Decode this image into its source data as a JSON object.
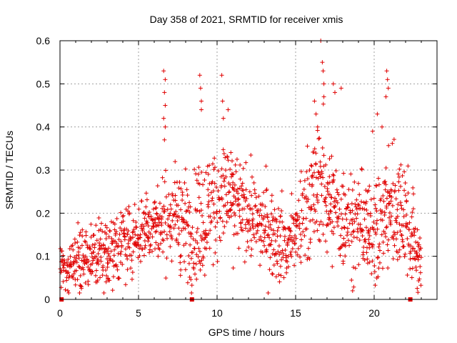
{
  "chart_data": {
    "type": "scatter",
    "title": "Day 358 of 2021, SRMTID for receiver xmis",
    "xlabel": "GPS time / hours",
    "ylabel": "SRMTID / TECUs",
    "xlim": [
      0,
      24
    ],
    "ylim": [
      0,
      0.6
    ],
    "x_ticks": [
      "0",
      "5",
      "10",
      "15",
      "20"
    ],
    "y_ticks": [
      "0",
      "0.1",
      "0.2",
      "0.3",
      "0.4",
      "0.5",
      "0.6"
    ],
    "grid": true,
    "marker": "+",
    "series_color": "#e00000",
    "baseline_markers_x": [
      0.1,
      8.4,
      22.3
    ],
    "envelope": {
      "x": [
        0.0,
        0.5,
        1.0,
        1.5,
        2.0,
        2.5,
        3.0,
        3.5,
        4.0,
        4.5,
        5.0,
        5.5,
        6.0,
        6.5,
        7.0,
        7.5,
        8.0,
        8.5,
        9.0,
        9.5,
        10.0,
        10.5,
        11.0,
        11.5,
        12.0,
        12.5,
        13.0,
        13.5,
        14.0,
        14.5,
        15.0,
        15.5,
        16.0,
        16.5,
        17.0,
        17.5,
        18.0,
        18.5,
        19.0,
        19.5,
        20.0,
        20.5,
        21.0,
        21.5,
        22.0,
        22.5,
        23.0
      ],
      "mean": [
        0.08,
        0.07,
        0.09,
        0.1,
        0.1,
        0.11,
        0.11,
        0.12,
        0.13,
        0.14,
        0.15,
        0.17,
        0.18,
        0.17,
        0.19,
        0.2,
        0.17,
        0.15,
        0.19,
        0.2,
        0.23,
        0.24,
        0.23,
        0.21,
        0.2,
        0.18,
        0.17,
        0.16,
        0.14,
        0.13,
        0.16,
        0.18,
        0.24,
        0.27,
        0.23,
        0.2,
        0.19,
        0.18,
        0.17,
        0.17,
        0.16,
        0.18,
        0.22,
        0.22,
        0.18,
        0.14,
        0.07
      ],
      "spread": [
        0.03,
        0.03,
        0.04,
        0.04,
        0.04,
        0.04,
        0.04,
        0.04,
        0.04,
        0.04,
        0.04,
        0.04,
        0.04,
        0.05,
        0.06,
        0.06,
        0.06,
        0.06,
        0.07,
        0.07,
        0.07,
        0.06,
        0.06,
        0.05,
        0.05,
        0.05,
        0.05,
        0.05,
        0.05,
        0.05,
        0.05,
        0.06,
        0.07,
        0.08,
        0.07,
        0.06,
        0.06,
        0.06,
        0.06,
        0.06,
        0.06,
        0.07,
        0.07,
        0.07,
        0.06,
        0.06,
        0.02
      ]
    },
    "spikes": [
      {
        "x": 6.6,
        "y": 0.53
      },
      {
        "x": 6.7,
        "y": 0.51
      },
      {
        "x": 6.65,
        "y": 0.48
      },
      {
        "x": 6.7,
        "y": 0.45
      },
      {
        "x": 6.6,
        "y": 0.42
      },
      {
        "x": 6.7,
        "y": 0.4
      },
      {
        "x": 6.65,
        "y": 0.37
      },
      {
        "x": 8.9,
        "y": 0.52
      },
      {
        "x": 8.95,
        "y": 0.49
      },
      {
        "x": 9.0,
        "y": 0.46
      },
      {
        "x": 9.0,
        "y": 0.44
      },
      {
        "x": 10.3,
        "y": 0.52
      },
      {
        "x": 10.35,
        "y": 0.46
      },
      {
        "x": 10.4,
        "y": 0.42
      },
      {
        "x": 10.7,
        "y": 0.44
      },
      {
        "x": 16.6,
        "y": 0.6
      },
      {
        "x": 16.7,
        "y": 0.55
      },
      {
        "x": 16.75,
        "y": 0.53
      },
      {
        "x": 16.8,
        "y": 0.5
      },
      {
        "x": 16.8,
        "y": 0.47
      },
      {
        "x": 16.2,
        "y": 0.46
      },
      {
        "x": 16.3,
        "y": 0.43
      },
      {
        "x": 16.4,
        "y": 0.4
      },
      {
        "x": 17.4,
        "y": 0.5
      },
      {
        "x": 17.9,
        "y": 0.49
      },
      {
        "x": 17.5,
        "y": 0.48
      },
      {
        "x": 20.8,
        "y": 0.53
      },
      {
        "x": 20.85,
        "y": 0.51
      },
      {
        "x": 20.9,
        "y": 0.49
      },
      {
        "x": 20.75,
        "y": 0.47
      },
      {
        "x": 20.2,
        "y": 0.43
      },
      {
        "x": 19.9,
        "y": 0.39
      },
      {
        "x": 20.5,
        "y": 0.4
      },
      {
        "x": 0.5,
        "y": 0.02
      }
    ]
  }
}
